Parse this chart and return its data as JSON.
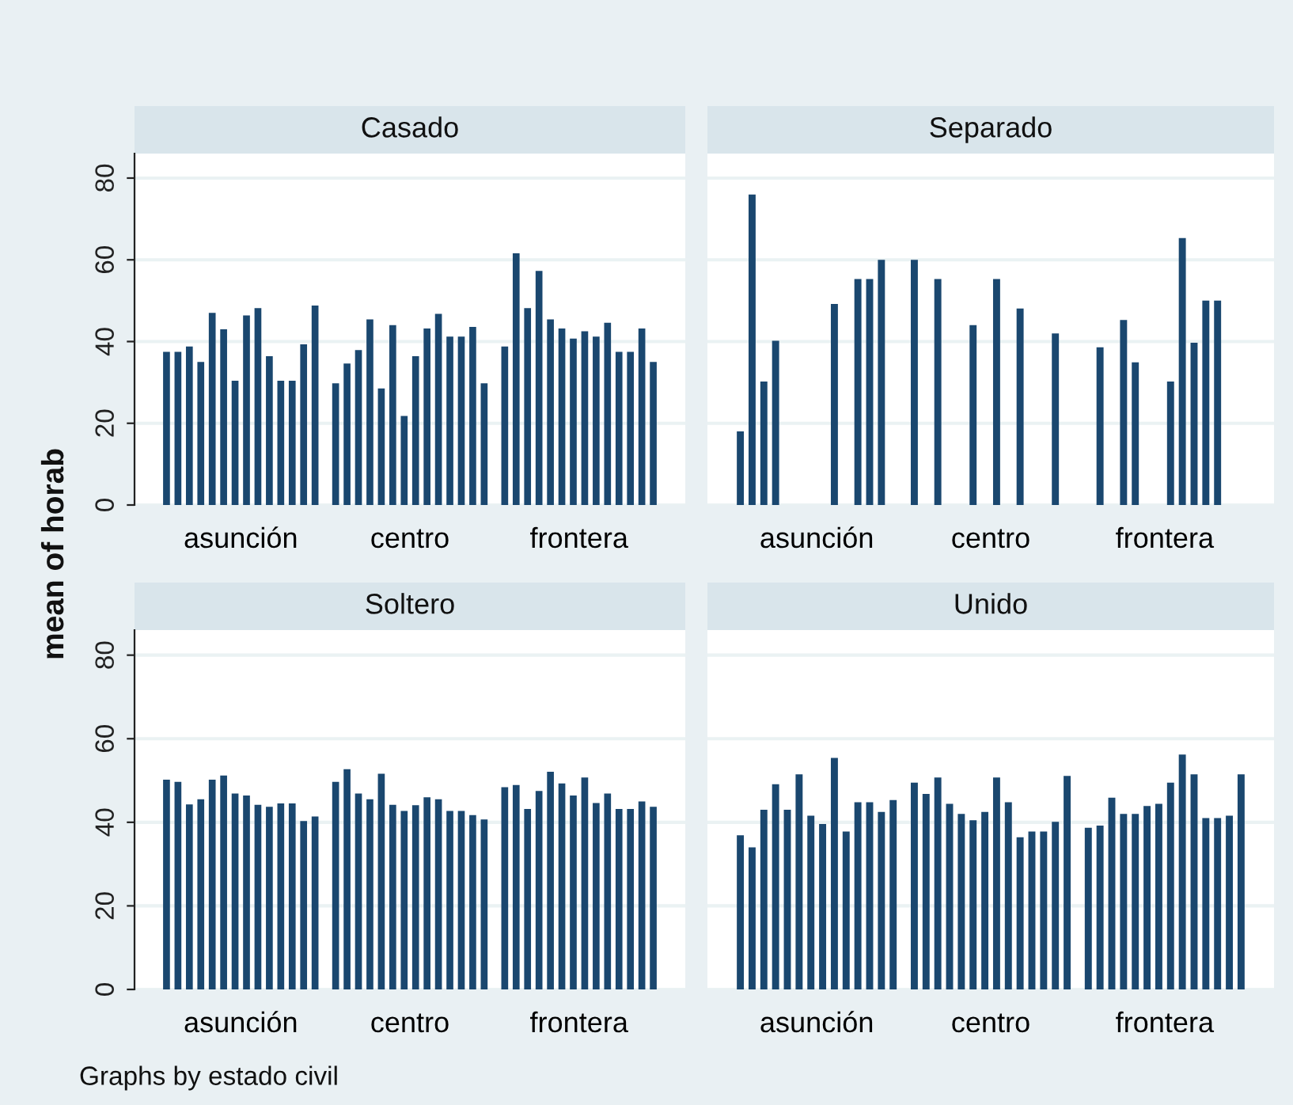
{
  "chart_data": [
    {
      "type": "bar",
      "title": "Casado",
      "ylabel": "mean of horab",
      "categories": [
        "asunción",
        "centro",
        "frontera"
      ],
      "ylim": [
        0,
        86
      ],
      "yticks": [
        0,
        20,
        40,
        60,
        80
      ],
      "grid": "y",
      "series": [
        {
          "color": "#1a476f",
          "values": [
            37.5,
            29.8,
            38.8
          ]
        },
        {
          "color": "#1a476f",
          "values": [
            37.5,
            34.6,
            61.6
          ]
        },
        {
          "color": "#1a476f",
          "values": [
            38.8,
            37.9,
            48.2
          ]
        },
        {
          "color": "#1a476f",
          "values": [
            35,
            45.4,
            57.3
          ]
        },
        {
          "color": "#1a476f",
          "values": [
            47,
            28.5,
            45.4
          ]
        },
        {
          "color": "#1a476f",
          "values": [
            43,
            44,
            43.2
          ]
        },
        {
          "color": "#1a476f",
          "values": [
            30.4,
            21.8,
            40.7
          ]
        },
        {
          "color": "#1a476f",
          "values": [
            46.4,
            36.4,
            42.5
          ]
        },
        {
          "color": "#1a476f",
          "values": [
            48.2,
            43.2,
            41.2
          ]
        },
        {
          "color": "#1a476f",
          "values": [
            36.4,
            46.8,
            44.6
          ]
        },
        {
          "color": "#1a476f",
          "values": [
            30.4,
            41.2,
            37.5
          ]
        },
        {
          "color": "#1a476f",
          "values": [
            30.4,
            41.2,
            37.5
          ]
        },
        {
          "color": "#1a476f",
          "values": [
            39.3,
            43.6,
            43.2
          ]
        },
        {
          "color": "#1a476f",
          "values": [
            48.8,
            29.8,
            35
          ]
        }
      ]
    },
    {
      "type": "bar",
      "title": "Separado",
      "categories": [
        "asunción",
        "centro",
        "frontera"
      ],
      "ylim": [
        0,
        86
      ],
      "yticks": [
        0,
        20,
        40,
        60,
        80
      ],
      "grid": "y",
      "tick_labels": "x",
      "series": [
        {
          "color": "#1a476f",
          "values": [
            18,
            60,
            null
          ]
        },
        {
          "color": "#1a476f",
          "values": [
            76,
            null,
            38.6
          ]
        },
        {
          "color": "#1a476f",
          "values": [
            30.2,
            55.3,
            null
          ]
        },
        {
          "color": "#1a476f",
          "values": [
            40.2,
            null,
            45.3
          ]
        },
        {
          "color": "#1a476f",
          "values": [
            null,
            null,
            34.9
          ]
        },
        {
          "color": "#1a476f",
          "values": [
            null,
            44,
            null
          ]
        },
        {
          "color": "#1a476f",
          "values": [
            null,
            null,
            null
          ]
        },
        {
          "color": "#1a476f",
          "values": [
            null,
            55.3,
            30.2
          ]
        },
        {
          "color": "#1a476f",
          "values": [
            49.2,
            null,
            65.3
          ]
        },
        {
          "color": "#1a476f",
          "values": [
            null,
            48.1,
            39.7
          ]
        },
        {
          "color": "#1a476f",
          "values": [
            55.3,
            null,
            50
          ]
        },
        {
          "color": "#1a476f",
          "values": [
            55.3,
            null,
            50
          ]
        },
        {
          "color": "#1a476f",
          "values": [
            60,
            42,
            null
          ]
        },
        {
          "color": "#1a476f",
          "values": [
            null,
            null,
            null
          ]
        }
      ]
    },
    {
      "type": "bar",
      "title": "Soltero",
      "categories": [
        "asunción",
        "centro",
        "frontera"
      ],
      "ylim": [
        0,
        86
      ],
      "yticks": [
        0,
        20,
        40,
        60,
        80
      ],
      "grid": "y",
      "annotations": [
        "Graphs by estado civil"
      ],
      "series": [
        {
          "color": "#1a476f",
          "values": [
            50.2,
            49.7,
            48.4
          ]
        },
        {
          "color": "#1a476f",
          "values": [
            49.7,
            52.7,
            48.9
          ]
        },
        {
          "color": "#1a476f",
          "values": [
            44.3,
            46.9,
            43.2
          ]
        },
        {
          "color": "#1a476f",
          "values": [
            45.5,
            45.5,
            47.5
          ]
        },
        {
          "color": "#1a476f",
          "values": [
            50.2,
            51.6,
            52.1
          ]
        },
        {
          "color": "#1a476f",
          "values": [
            51.2,
            44.2,
            49.3
          ]
        },
        {
          "color": "#1a476f",
          "values": [
            46.9,
            42.7,
            46.4
          ]
        },
        {
          "color": "#1a476f",
          "values": [
            46.4,
            44.1,
            50.7
          ]
        },
        {
          "color": "#1a476f",
          "values": [
            44.2,
            46,
            44.6
          ]
        },
        {
          "color": "#1a476f",
          "values": [
            43.7,
            45.5,
            46.9
          ]
        },
        {
          "color": "#1a476f",
          "values": [
            44.5,
            42.7,
            43.2
          ]
        },
        {
          "color": "#1a476f",
          "values": [
            44.5,
            42.7,
            43.2
          ]
        },
        {
          "color": "#1a476f",
          "values": [
            40.3,
            41.7,
            45
          ]
        },
        {
          "color": "#1a476f",
          "values": [
            41.4,
            40.7,
            43.7
          ]
        }
      ]
    },
    {
      "type": "bar",
      "title": "Unido",
      "categories": [
        "asunción",
        "centro",
        "frontera"
      ],
      "ylim": [
        0,
        86
      ],
      "yticks": [
        0,
        20,
        40,
        60,
        80
      ],
      "grid": "y",
      "tick_labels": "x",
      "series": [
        {
          "color": "#1a476f",
          "values": [
            36.9,
            49.5,
            38.7
          ]
        },
        {
          "color": "#1a476f",
          "values": [
            34,
            46.8,
            39.2
          ]
        },
        {
          "color": "#1a476f",
          "values": [
            43,
            50.7,
            45.9
          ]
        },
        {
          "color": "#1a476f",
          "values": [
            49.1,
            44.4,
            42
          ]
        },
        {
          "color": "#1a476f",
          "values": [
            43,
            42,
            42
          ]
        },
        {
          "color": "#1a476f",
          "values": [
            51.5,
            40.5,
            43.9
          ]
        },
        {
          "color": "#1a476f",
          "values": [
            41.6,
            42.5,
            44.4
          ]
        },
        {
          "color": "#1a476f",
          "values": [
            39.6,
            50.7,
            49.5
          ]
        },
        {
          "color": "#1a476f",
          "values": [
            55.4,
            44.8,
            56.2
          ]
        },
        {
          "color": "#1a476f",
          "values": [
            37.8,
            36.4,
            51.5
          ]
        },
        {
          "color": "#1a476f",
          "values": [
            44.8,
            37.8,
            41
          ]
        },
        {
          "color": "#1a476f",
          "values": [
            44.8,
            37.8,
            41
          ]
        },
        {
          "color": "#1a476f",
          "values": [
            42.5,
            40.1,
            41.6
          ]
        },
        {
          "color": "#1a476f",
          "values": [
            45.3,
            51.1,
            51.5
          ]
        }
      ]
    }
  ]
}
